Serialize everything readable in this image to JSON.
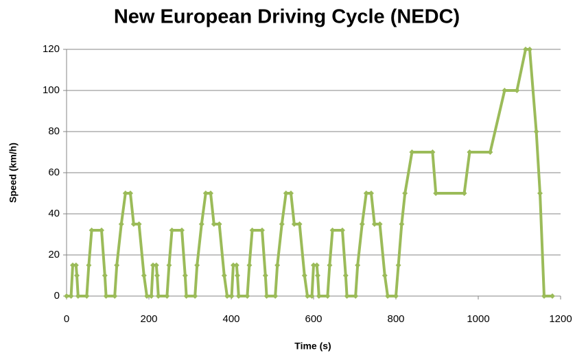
{
  "chart_data": {
    "type": "line",
    "title": "New European Driving Cycle (NEDC)",
    "x_label": "Time (s)",
    "y_label": "Speed (km/h)",
    "x": [
      0,
      11,
      15,
      23,
      25,
      28,
      49,
      54,
      61,
      85,
      93,
      96,
      117,
      122,
      133,
      143,
      155,
      163,
      176,
      188,
      195,
      206,
      210,
      218,
      220,
      223,
      244,
      249,
      256,
      280,
      288,
      291,
      312,
      317,
      328,
      338,
      350,
      358,
      371,
      383,
      390,
      401,
      405,
      413,
      415,
      418,
      439,
      444,
      451,
      475,
      483,
      486,
      507,
      512,
      523,
      533,
      545,
      553,
      566,
      578,
      585,
      596,
      600,
      608,
      610,
      613,
      634,
      639,
      646,
      670,
      678,
      681,
      702,
      707,
      718,
      728,
      740,
      748,
      761,
      773,
      780,
      800,
      806,
      814,
      822,
      839,
      889,
      897,
      966,
      979,
      1029,
      1064,
      1094,
      1115,
      1125,
      1141,
      1150,
      1160,
      1180
    ],
    "series": [
      {
        "name": "Speed",
        "color": "#9bbb59",
        "values": [
          0,
          0,
          15,
          15,
          10,
          0,
          0,
          15,
          32,
          32,
          10,
          0,
          0,
          15,
          35,
          50,
          50,
          35,
          35,
          10,
          0,
          0,
          15,
          15,
          10,
          0,
          0,
          15,
          32,
          32,
          10,
          0,
          0,
          15,
          35,
          50,
          50,
          35,
          35,
          10,
          0,
          0,
          15,
          15,
          10,
          0,
          0,
          15,
          32,
          32,
          10,
          0,
          0,
          15,
          35,
          50,
          50,
          35,
          35,
          10,
          0,
          0,
          15,
          15,
          10,
          0,
          0,
          15,
          32,
          32,
          10,
          0,
          0,
          15,
          35,
          50,
          50,
          35,
          35,
          10,
          0,
          0,
          15,
          35,
          50,
          70,
          70,
          50,
          50,
          70,
          70,
          100,
          100,
          120,
          120,
          80,
          50,
          0,
          0
        ]
      }
    ],
    "xlim": [
      0,
      1200
    ],
    "xticks": [
      0,
      200,
      400,
      600,
      800,
      1000,
      1200
    ],
    "ylim": [
      0,
      120
    ],
    "yticks": [
      0,
      20,
      40,
      60,
      80,
      100,
      120
    ],
    "grid": true,
    "markers": true
  }
}
